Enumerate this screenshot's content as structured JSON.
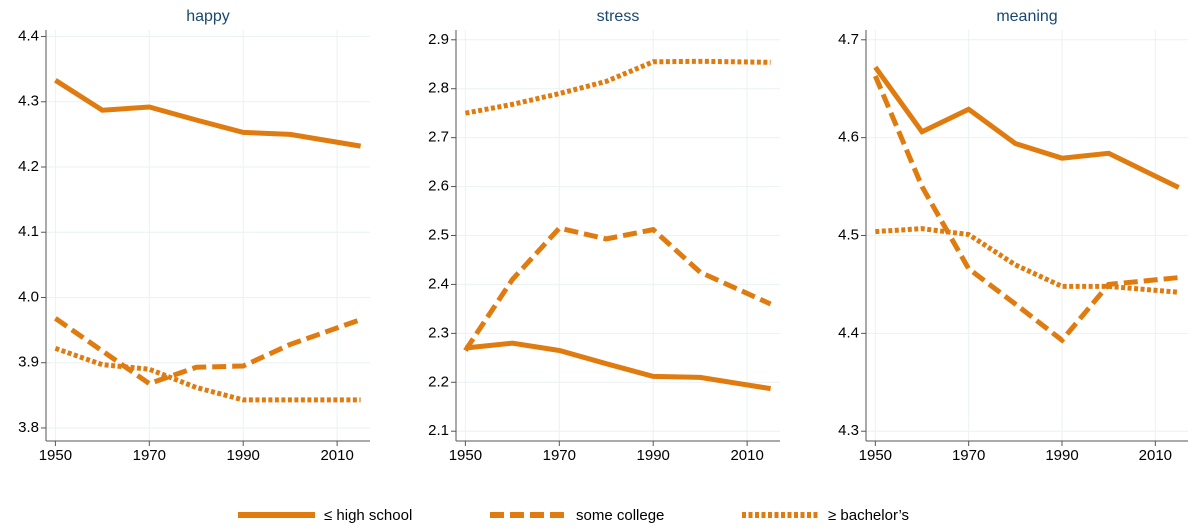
{
  "chart_data": [
    {
      "type": "line",
      "title": "happy",
      "x": [
        1950,
        1960,
        1970,
        1980,
        1990,
        2000,
        2015
      ],
      "xlim": [
        1948,
        2017
      ],
      "xticks": [
        1950,
        1970,
        1990,
        2010
      ],
      "ylim": [
        3.78,
        4.41
      ],
      "yticks": [
        3.8,
        3.9,
        {
          "value": 4,
          "label": "4.0"
        },
        4.1,
        4.2,
        4.3,
        4.4
      ],
      "grid": true,
      "series": [
        {
          "name": "≤ high school",
          "color": "#e07b0f",
          "dash": "solid",
          "values": [
            4.333,
            4.287,
            4.292,
            4.272,
            4.253,
            4.25,
            4.232
          ]
        },
        {
          "name": "some college",
          "color": "#e07b0f",
          "dash": "dashed",
          "values": [
            3.968,
            3.918,
            3.868,
            3.893,
            3.895,
            3.928,
            3.966
          ]
        },
        {
          "name": "≥ bachelor’s",
          "color": "#e07b0f",
          "dash": "dotted",
          "values": [
            3.922,
            3.897,
            3.89,
            3.862,
            3.843,
            3.843,
            3.843
          ]
        }
      ]
    },
    {
      "type": "line",
      "title": "stress",
      "x": [
        1950,
        1960,
        1970,
        1980,
        1990,
        2000,
        2015
      ],
      "xlim": [
        1948,
        2017
      ],
      "xticks": [
        1950,
        1970,
        1990,
        2010
      ],
      "ylim": [
        2.08,
        2.92
      ],
      "yticks": [
        2.1,
        2.2,
        2.3,
        2.4,
        2.5,
        2.6,
        2.7,
        2.8,
        2.9
      ],
      "grid": true,
      "series": [
        {
          "color": "#e07b0f",
          "dash": "solid",
          "values": [
            2.27,
            2.28,
            2.265,
            2.238,
            2.212,
            2.21,
            2.187
          ]
        },
        {
          "color": "#e07b0f",
          "dash": "dashed",
          "values": [
            2.265,
            2.41,
            2.515,
            2.493,
            2.512,
            2.425,
            2.36
          ]
        },
        {
          "color": "#e07b0f",
          "dash": "dotted",
          "values": [
            2.75,
            2.768,
            2.79,
            2.815,
            2.855,
            2.856,
            2.854
          ]
        }
      ]
    },
    {
      "type": "line",
      "title": "meaning",
      "x": [
        1950,
        1960,
        1970,
        1980,
        1990,
        2000,
        2015
      ],
      "xlim": [
        1948,
        2017
      ],
      "xticks": [
        1950,
        1970,
        1990,
        2010
      ],
      "ylim": [
        4.29,
        4.71
      ],
      "yticks": [
        4.3,
        4.4,
        4.5,
        4.6,
        4.7
      ],
      "grid": true,
      "series": [
        {
          "color": "#e07b0f",
          "dash": "solid",
          "values": [
            4.672,
            4.606,
            4.629,
            4.594,
            4.579,
            4.584,
            4.549
          ]
        },
        {
          "color": "#e07b0f",
          "dash": "dashed",
          "values": [
            4.663,
            4.55,
            4.466,
            4.43,
            4.393,
            4.45,
            4.457
          ]
        },
        {
          "color": "#e07b0f",
          "dash": "dotted",
          "values": [
            4.504,
            4.507,
            4.501,
            4.47,
            4.448,
            4.448,
            4.442
          ]
        }
      ]
    }
  ]
}
